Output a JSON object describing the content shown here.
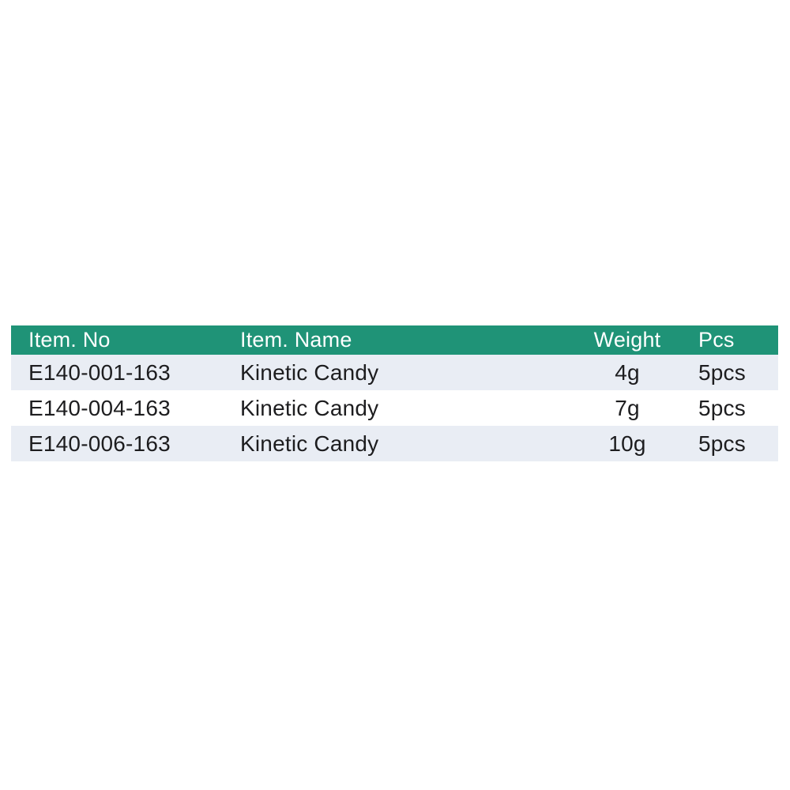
{
  "page": {
    "background": "#ffffff"
  },
  "table": {
    "columns": [
      {
        "key": "item_no",
        "label": "Item. No"
      },
      {
        "key": "item_name",
        "label": "Item. Name"
      },
      {
        "key": "weight",
        "label": "Weight"
      },
      {
        "key": "pcs",
        "label": "Pcs"
      }
    ],
    "rows": [
      {
        "item_no": "E140-001-163",
        "item_name": "Kinetic Candy",
        "weight": "4g",
        "pcs": "5pcs"
      },
      {
        "item_no": "E140-004-163",
        "item_name": "Kinetic Candy",
        "weight": "7g",
        "pcs": "5pcs"
      },
      {
        "item_no": "E140-006-163",
        "item_name": "Kinetic Candy",
        "weight": "10g",
        "pcs": "5pcs"
      }
    ],
    "colors": {
      "header_bg": "#1f9377",
      "header_text": "#ffffff",
      "row_alt_bg": "#e9edf4",
      "row_bg": "#ffffff",
      "text": "#1d1d1f"
    }
  },
  "chart_data": {
    "type": "table",
    "title": "",
    "columns": [
      "Item. No",
      "Item. Name",
      "Weight",
      "Pcs"
    ],
    "rows": [
      [
        "E140-001-163",
        "Kinetic Candy",
        "4g",
        "5pcs"
      ],
      [
        "E140-004-163",
        "Kinetic Candy",
        "7g",
        "5pcs"
      ],
      [
        "E140-006-163",
        "Kinetic Candy",
        "10g",
        "5pcs"
      ]
    ],
    "weights_g": [
      4,
      7,
      10
    ],
    "pcs_per_pack": [
      5,
      5,
      5
    ],
    "layout_hints": {
      "header_style": "teal band, white text",
      "row_striping": "odd rows light blue-gray (#e9edf4), even rows white",
      "alignment": [
        "left",
        "left",
        "center",
        "left"
      ]
    }
  }
}
